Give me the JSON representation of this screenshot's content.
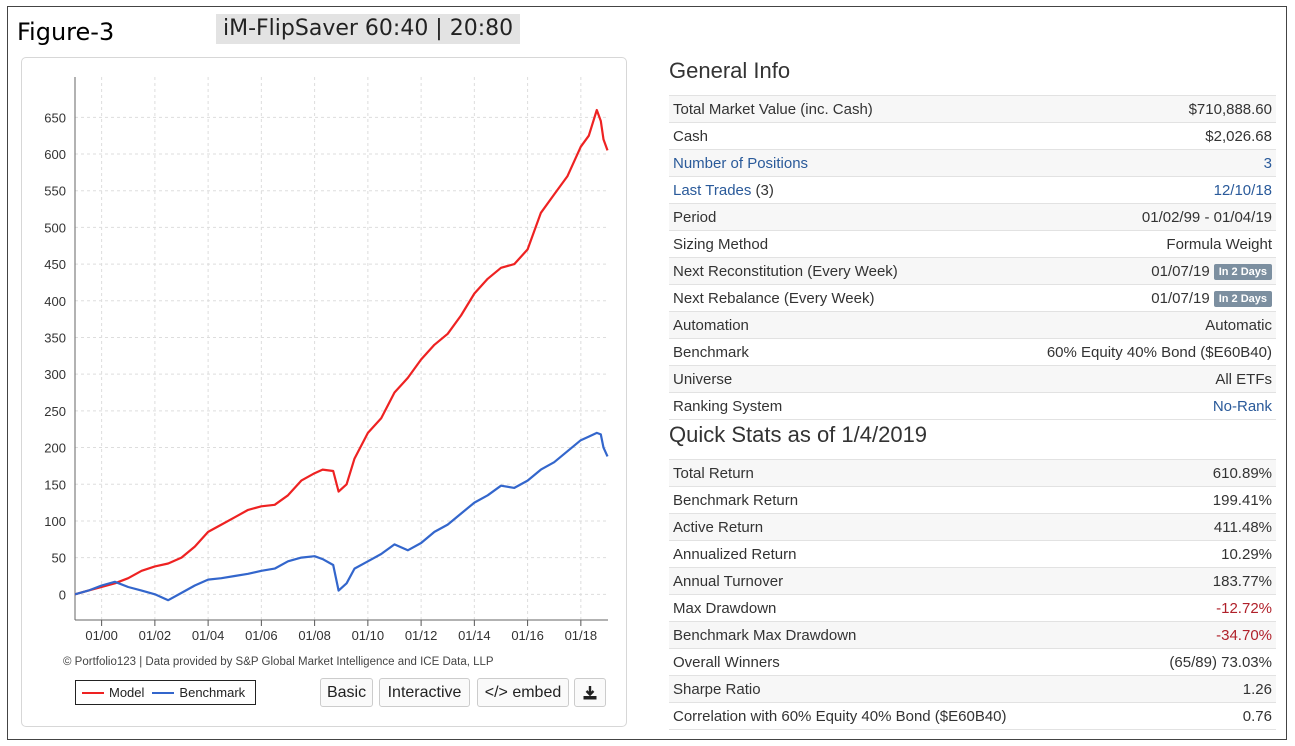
{
  "figure_label": "Figure-3",
  "figure_title": "iM-FlipSaver 60:40 | 20:80",
  "chart_credit": "© Portfolio123 | Data provided by S&P Global Market Intelligence and ICE Data, LLP",
  "chart_buttons": {
    "basic": "Basic",
    "interactive": "Interactive",
    "embed": "</> embed"
  },
  "general_info": {
    "title": "General Info",
    "rows": [
      {
        "label": "Total Market Value (inc. Cash)",
        "value": "$710,888.60"
      },
      {
        "label": "Cash",
        "value": "$2,026.68"
      },
      {
        "label": "Number of Positions",
        "value": "3",
        "link": true
      },
      {
        "label": "Last Trades",
        "label_suffix": " (3)",
        "value": "12/10/18",
        "link": true
      },
      {
        "label": "Period",
        "value": "01/02/99 - 01/04/19"
      },
      {
        "label": "Sizing Method",
        "value": "Formula Weight"
      },
      {
        "label": "Next Reconstitution (Every Week)",
        "value": "01/07/19",
        "badge": "In 2 Days"
      },
      {
        "label": "Next Rebalance (Every Week)",
        "value": "01/07/19",
        "badge": "In 2 Days"
      },
      {
        "label": "Automation",
        "value": "Automatic"
      },
      {
        "label": "Benchmark",
        "value": "60% Equity 40% Bond ($E60B40)"
      },
      {
        "label": "Universe",
        "value": "All ETFs"
      },
      {
        "label": "Ranking System",
        "value": "No-Rank",
        "value_link": true
      }
    ]
  },
  "quick_stats": {
    "title": "Quick Stats as of 1/4/2019",
    "rows": [
      {
        "label": "Total Return",
        "value": "610.89%"
      },
      {
        "label": "Benchmark Return",
        "value": "199.41%"
      },
      {
        "label": "Active Return",
        "value": "411.48%"
      },
      {
        "label": "Annualized Return",
        "value": "10.29%"
      },
      {
        "label": "Annual Turnover",
        "value": "183.77%"
      },
      {
        "label": "Max Drawdown",
        "value": "-12.72%",
        "negative": true
      },
      {
        "label": "Benchmark Max Drawdown",
        "value": "-34.70%",
        "negative": true
      },
      {
        "label": "Overall Winners",
        "value": "(65/89) 73.03%"
      },
      {
        "label": "Sharpe Ratio",
        "value": "1.26"
      },
      {
        "label": "Correlation with 60% Equity 40% Bond ($E60B40)",
        "value": "0.76"
      }
    ]
  },
  "chart_data": {
    "type": "line",
    "x_tick_labels": [
      "01/00",
      "01/02",
      "01/04",
      "01/06",
      "01/08",
      "01/10",
      "01/12",
      "01/14",
      "01/16",
      "01/18"
    ],
    "x_ticks": [
      2000,
      2002,
      2004,
      2006,
      2008,
      2010,
      2012,
      2014,
      2016,
      2018
    ],
    "y_ticks": [
      0,
      50,
      100,
      150,
      200,
      250,
      300,
      350,
      400,
      450,
      500,
      550,
      600,
      650
    ],
    "xlim": [
      1999.0,
      2019.02
    ],
    "ylim": [
      -35,
      705
    ],
    "grid": true,
    "legend_position": "bottom-left",
    "series": [
      {
        "name": "Model",
        "color": "#ee2222",
        "x": [
          1999.0,
          1999.5,
          2000.0,
          2000.5,
          2001.0,
          2001.5,
          2002.0,
          2002.5,
          2003.0,
          2003.5,
          2004.0,
          2004.5,
          2005.0,
          2005.5,
          2006.0,
          2006.5,
          2007.0,
          2007.5,
          2008.0,
          2008.3,
          2008.7,
          2008.9,
          2009.2,
          2009.5,
          2010.0,
          2010.5,
          2011.0,
          2011.5,
          2012.0,
          2012.5,
          2013.0,
          2013.5,
          2014.0,
          2014.5,
          2015.0,
          2015.5,
          2016.0,
          2016.5,
          2017.0,
          2017.5,
          2018.0,
          2018.3,
          2018.6,
          2018.75,
          2018.85,
          2019.0
        ],
        "y": [
          0,
          5,
          10,
          15,
          22,
          32,
          38,
          42,
          50,
          65,
          85,
          95,
          105,
          115,
          120,
          122,
          135,
          155,
          165,
          170,
          168,
          140,
          150,
          185,
          220,
          240,
          275,
          295,
          320,
          340,
          355,
          380,
          410,
          430,
          445,
          450,
          470,
          520,
          545,
          570,
          610,
          625,
          660,
          645,
          620,
          605
        ]
      },
      {
        "name": "Benchmark",
        "color": "#3366cc",
        "x": [
          1999.0,
          1999.5,
          2000.0,
          2000.5,
          2001.0,
          2001.5,
          2002.0,
          2002.5,
          2003.0,
          2003.5,
          2004.0,
          2004.5,
          2005.0,
          2005.5,
          2006.0,
          2006.5,
          2007.0,
          2007.5,
          2008.0,
          2008.3,
          2008.7,
          2008.9,
          2009.2,
          2009.5,
          2010.0,
          2010.5,
          2011.0,
          2011.5,
          2012.0,
          2012.5,
          2013.0,
          2013.5,
          2014.0,
          2014.5,
          2015.0,
          2015.5,
          2016.0,
          2016.5,
          2017.0,
          2017.5,
          2018.0,
          2018.3,
          2018.6,
          2018.75,
          2018.85,
          2019.0
        ],
        "y": [
          0,
          5,
          12,
          17,
          10,
          5,
          0,
          -8,
          2,
          12,
          20,
          22,
          25,
          28,
          32,
          35,
          45,
          50,
          52,
          48,
          40,
          5,
          15,
          35,
          45,
          55,
          68,
          60,
          70,
          85,
          95,
          110,
          125,
          135,
          148,
          145,
          155,
          170,
          180,
          195,
          210,
          215,
          220,
          218,
          200,
          188
        ]
      }
    ]
  }
}
